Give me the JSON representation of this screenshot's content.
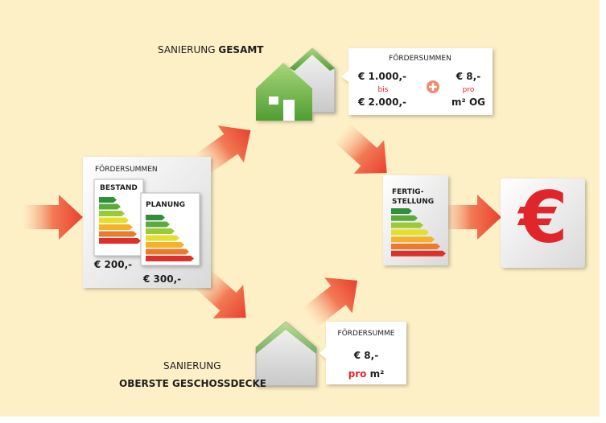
{
  "top_label": {
    "prefix": "SANIERUNG",
    "bold": "GESAMT"
  },
  "top_callout": {
    "title": "FÖRDERSUMMEN",
    "amount_from": "€ 1.000,-",
    "connector": "bis",
    "amount_to": "€ 2.000,-",
    "per_amount": "€ 8,-",
    "per_word": "pro",
    "per_unit": "m² OG"
  },
  "left_box": {
    "title": "FÖRDERSUMMEN",
    "cards": [
      {
        "label": "BESTAND",
        "amount": "€ 200,-"
      },
      {
        "label": "PLANUNG",
        "amount": "€ 300,-"
      }
    ]
  },
  "completion": {
    "label_lines": [
      "FERTIG-",
      "STELLUNG"
    ]
  },
  "result_icon": "€",
  "bottom_label": {
    "line1": "SANIERUNG",
    "line2": "OBERSTE GESCHOSSDECKE"
  },
  "bottom_callout": {
    "title": "FÖRDERSUMME",
    "amount": "€ 8,-",
    "per_word": "pro",
    "per_unit": "m²"
  }
}
